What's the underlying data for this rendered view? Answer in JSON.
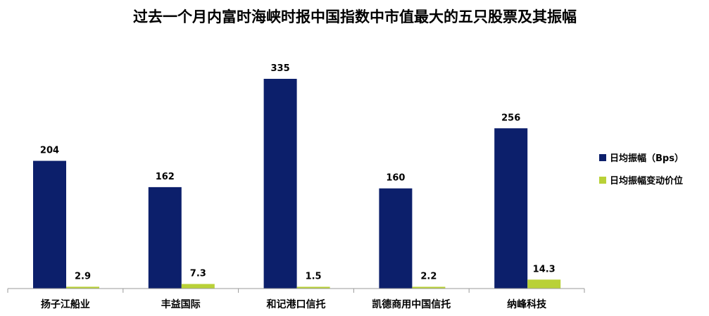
{
  "chart_data": {
    "type": "bar",
    "title": "过去一个月内富时海峡时报中国指数中市值最大的五只股票及其振幅",
    "xlabel": "",
    "ylabel": "",
    "categories": [
      "扬子江船业",
      "丰益国际",
      "和记港口信托",
      "凯德商用中国信托",
      "纳峰科技"
    ],
    "series": [
      {
        "name": "日均振幅（Bps）",
        "values": [
          204,
          162,
          335,
          160,
          256
        ],
        "color": "#0c1f6b"
      },
      {
        "name": "日均振幅变动价位",
        "values": [
          2.9,
          7.3,
          1.5,
          2.2,
          14.3
        ],
        "color": "#b9d137"
      }
    ],
    "ylim": [
      0,
      335
    ],
    "grid": false,
    "legend": "right"
  }
}
